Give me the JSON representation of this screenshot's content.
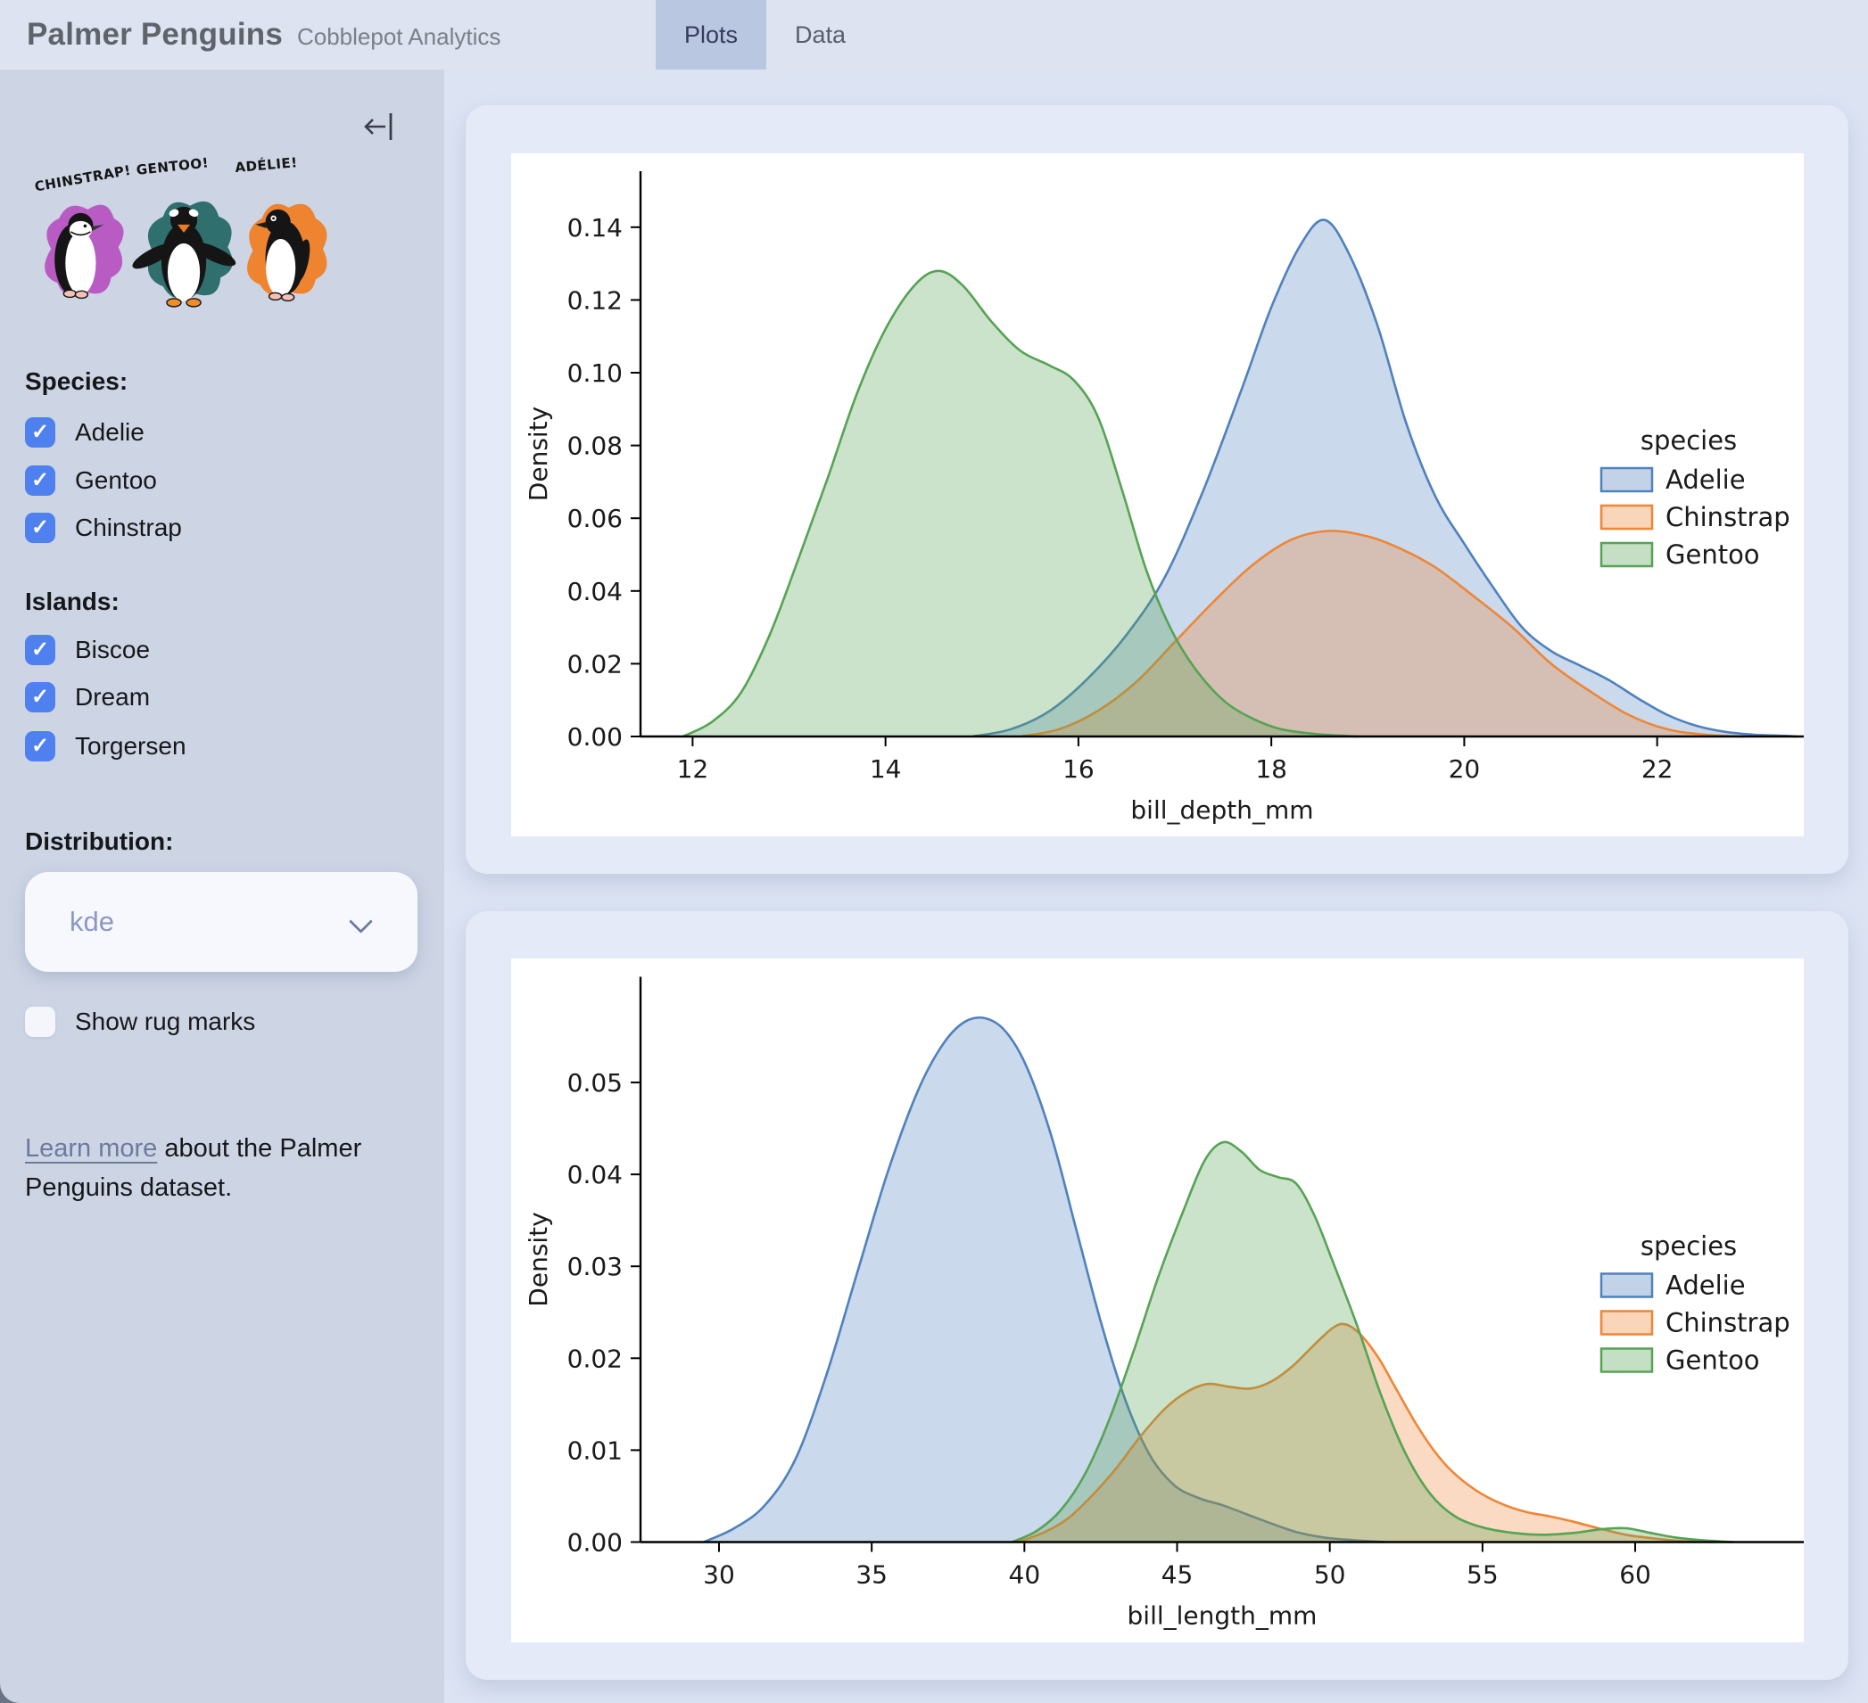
{
  "header": {
    "title": "Palmer Penguins",
    "subtitle": "Cobblepot Analytics",
    "tabs": [
      {
        "label": "Plots",
        "active": true
      },
      {
        "label": "Data",
        "active": false
      }
    ]
  },
  "sidebar": {
    "artwork": {
      "labels": [
        "CHINSTRAP!",
        "GENTOO!",
        "ADÉLIE!"
      ],
      "splash_colors": [
        "#b85cc4",
        "#2f6f6d",
        "#ee8330"
      ]
    },
    "species": {
      "label": "Species:",
      "options": [
        {
          "label": "Adelie",
          "checked": true
        },
        {
          "label": "Gentoo",
          "checked": true
        },
        {
          "label": "Chinstrap",
          "checked": true
        }
      ]
    },
    "islands": {
      "label": "Islands:",
      "options": [
        {
          "label": "Biscoe",
          "checked": true
        },
        {
          "label": "Dream",
          "checked": true
        },
        {
          "label": "Torgersen",
          "checked": true
        }
      ]
    },
    "distribution": {
      "label": "Distribution:",
      "value": "kde"
    },
    "rug": {
      "label": "Show rug marks",
      "checked": false
    },
    "learn_more": {
      "link_text": "Learn more",
      "rest_text": " about the Palmer Penguins dataset."
    }
  },
  "icons": {
    "check": "✓",
    "collapse": "left-arrow-to-bar"
  },
  "theme": {
    "header_bg": "#dde3f1",
    "active_tab_bg": "#b9c7e1",
    "sidebar_bg": "#cdd5e5",
    "main_bg": "#dce4f4",
    "card_bg": "#e4eaf7",
    "checkbox_blue": "#4e80f0",
    "link_color": "#6d7a9e",
    "adelie_color": "#4f81bc",
    "chinstrap_color": "#ee8636",
    "gentoo_color": "#56a354"
  },
  "chart_data": [
    {
      "type": "area",
      "kind": "kde",
      "title": "",
      "xlabel": "bill_depth_mm",
      "ylabel": "Density",
      "xlim": [
        11.46,
        23.52
      ],
      "ylim": [
        0,
        0.1554
      ],
      "grid": false,
      "xticks": [
        {
          "v": 12,
          "label": "12"
        },
        {
          "v": 14,
          "label": "14"
        },
        {
          "v": 16,
          "label": "16"
        },
        {
          "v": 18,
          "label": "18"
        },
        {
          "v": 20,
          "label": "20"
        },
        {
          "v": 22,
          "label": "22"
        }
      ],
      "yticks": [
        {
          "v": 0,
          "label": "0.00"
        },
        {
          "v": 0.02,
          "label": "0.02"
        },
        {
          "v": 0.04,
          "label": "0.04"
        },
        {
          "v": 0.06,
          "label": "0.06"
        },
        {
          "v": 0.08,
          "label": "0.08"
        },
        {
          "v": 0.1,
          "label": "0.10"
        },
        {
          "v": 0.12,
          "label": "0.12"
        },
        {
          "v": 0.14,
          "label": "0.14"
        }
      ],
      "legend": {
        "title": "species",
        "position": "right-center",
        "entries": [
          "Adelie",
          "Chinstrap",
          "Gentoo"
        ]
      },
      "series": [
        {
          "name": "Adelie",
          "color": "#4f81bc",
          "fill_alpha": 0.3,
          "points": [
            [
              14.9,
              0
            ],
            [
              15.3,
              0.002
            ],
            [
              15.7,
              0.007
            ],
            [
              16.1,
              0.016
            ],
            [
              16.5,
              0.028
            ],
            [
              16.9,
              0.044
            ],
            [
              17.3,
              0.068
            ],
            [
              17.7,
              0.096
            ],
            [
              18.0,
              0.118
            ],
            [
              18.3,
              0.135
            ],
            [
              18.55,
              0.142
            ],
            [
              18.8,
              0.133
            ],
            [
              19.1,
              0.113
            ],
            [
              19.4,
              0.086
            ],
            [
              19.7,
              0.066
            ],
            [
              20.0,
              0.053
            ],
            [
              20.3,
              0.041
            ],
            [
              20.6,
              0.03
            ],
            [
              20.9,
              0.0235
            ],
            [
              21.2,
              0.0195
            ],
            [
              21.5,
              0.0155
            ],
            [
              21.8,
              0.0105
            ],
            [
              22.1,
              0.006
            ],
            [
              22.4,
              0.003
            ],
            [
              22.7,
              0.0013
            ],
            [
              23.0,
              0.0005
            ],
            [
              23.3,
              0.0002
            ],
            [
              23.45,
              0
            ]
          ]
        },
        {
          "name": "Chinstrap",
          "color": "#ee8636",
          "fill_alpha": 0.3,
          "points": [
            [
              15.4,
              0
            ],
            [
              15.8,
              0.002
            ],
            [
              16.2,
              0.007
            ],
            [
              16.6,
              0.015
            ],
            [
              17.0,
              0.026
            ],
            [
              17.4,
              0.037
            ],
            [
              17.8,
              0.047
            ],
            [
              18.2,
              0.054
            ],
            [
              18.6,
              0.0565
            ],
            [
              19.0,
              0.055
            ],
            [
              19.35,
              0.0515
            ],
            [
              19.7,
              0.0465
            ],
            [
              20.1,
              0.0385
            ],
            [
              20.5,
              0.03
            ],
            [
              20.9,
              0.02
            ],
            [
              21.3,
              0.0125
            ],
            [
              21.7,
              0.006
            ],
            [
              22.1,
              0.002
            ],
            [
              22.5,
              0.0005
            ],
            [
              22.9,
              0
            ]
          ]
        },
        {
          "name": "Gentoo",
          "color": "#56a354",
          "fill_alpha": 0.3,
          "points": [
            [
              11.9,
              0
            ],
            [
              12.2,
              0.004
            ],
            [
              12.5,
              0.012
            ],
            [
              12.8,
              0.028
            ],
            [
              13.1,
              0.049
            ],
            [
              13.4,
              0.071
            ],
            [
              13.7,
              0.094
            ],
            [
              14.0,
              0.112
            ],
            [
              14.3,
              0.124
            ],
            [
              14.55,
              0.128
            ],
            [
              14.8,
              0.124
            ],
            [
              15.1,
              0.114
            ],
            [
              15.4,
              0.106
            ],
            [
              15.7,
              0.102
            ],
            [
              15.95,
              0.098
            ],
            [
              16.2,
              0.088
            ],
            [
              16.45,
              0.068
            ],
            [
              16.7,
              0.046
            ],
            [
              16.95,
              0.03
            ],
            [
              17.2,
              0.019
            ],
            [
              17.5,
              0.01
            ],
            [
              17.8,
              0.005
            ],
            [
              18.1,
              0.002
            ],
            [
              18.5,
              0.0006
            ],
            [
              18.9,
              0
            ]
          ]
        }
      ]
    },
    {
      "type": "area",
      "kind": "kde",
      "title": "",
      "xlabel": "bill_length_mm",
      "ylabel": "Density",
      "xlim": [
        27.43,
        65.52
      ],
      "ylim": [
        0,
        0.0615
      ],
      "grid": false,
      "xticks": [
        {
          "v": 30,
          "label": "30"
        },
        {
          "v": 35,
          "label": "35"
        },
        {
          "v": 40,
          "label": "40"
        },
        {
          "v": 45,
          "label": "45"
        },
        {
          "v": 50,
          "label": "50"
        },
        {
          "v": 55,
          "label": "55"
        },
        {
          "v": 60,
          "label": "60"
        }
      ],
      "yticks": [
        {
          "v": 0,
          "label": "0.00"
        },
        {
          "v": 0.01,
          "label": "0.01"
        },
        {
          "v": 0.02,
          "label": "0.02"
        },
        {
          "v": 0.03,
          "label": "0.03"
        },
        {
          "v": 0.04,
          "label": "0.04"
        },
        {
          "v": 0.05,
          "label": "0.05"
        }
      ],
      "legend": {
        "title": "species",
        "position": "right-center",
        "entries": [
          "Adelie",
          "Chinstrap",
          "Gentoo"
        ]
      },
      "series": [
        {
          "name": "Adelie",
          "color": "#4f81bc",
          "fill_alpha": 0.3,
          "points": [
            [
              29.5,
              0
            ],
            [
              30.5,
              0.0015
            ],
            [
              31.5,
              0.004
            ],
            [
              32.5,
              0.009
            ],
            [
              33.5,
              0.018
            ],
            [
              34.5,
              0.029
            ],
            [
              35.5,
              0.04
            ],
            [
              36.5,
              0.049
            ],
            [
              37.3,
              0.054
            ],
            [
              38.0,
              0.0565
            ],
            [
              38.7,
              0.057
            ],
            [
              39.4,
              0.0555
            ],
            [
              40.1,
              0.0515
            ],
            [
              40.9,
              0.044
            ],
            [
              41.7,
              0.034
            ],
            [
              42.5,
              0.024
            ],
            [
              43.3,
              0.0155
            ],
            [
              44.1,
              0.0095
            ],
            [
              44.9,
              0.0062
            ],
            [
              45.7,
              0.0048
            ],
            [
              46.5,
              0.004
            ],
            [
              47.3,
              0.003
            ],
            [
              48.1,
              0.002
            ],
            [
              48.9,
              0.0011
            ],
            [
              49.8,
              0.0005
            ],
            [
              50.8,
              0.0002
            ],
            [
              51.8,
              0
            ]
          ]
        },
        {
          "name": "Chinstrap",
          "color": "#ee8636",
          "fill_alpha": 0.3,
          "points": [
            [
              39.8,
              0
            ],
            [
              40.6,
              0.001
            ],
            [
              41.4,
              0.0025
            ],
            [
              42.2,
              0.005
            ],
            [
              43.0,
              0.008
            ],
            [
              43.8,
              0.0115
            ],
            [
              44.6,
              0.0145
            ],
            [
              45.3,
              0.0163
            ],
            [
              46.0,
              0.0172
            ],
            [
              46.7,
              0.0169
            ],
            [
              47.4,
              0.0167
            ],
            [
              48.1,
              0.0175
            ],
            [
              48.8,
              0.0192
            ],
            [
              49.5,
              0.0215
            ],
            [
              50.1,
              0.0233
            ],
            [
              50.5,
              0.0237
            ],
            [
              51.0,
              0.0226
            ],
            [
              51.6,
              0.02
            ],
            [
              52.2,
              0.0165
            ],
            [
              52.8,
              0.013
            ],
            [
              53.4,
              0.01
            ],
            [
              54.0,
              0.0077
            ],
            [
              54.8,
              0.0056
            ],
            [
              55.6,
              0.0042
            ],
            [
              56.4,
              0.0033
            ],
            [
              57.2,
              0.0028
            ],
            [
              58.0,
              0.0022
            ],
            [
              58.8,
              0.0015
            ],
            [
              59.7,
              0.0008
            ],
            [
              60.6,
              0.0004
            ],
            [
              61.6,
              0.0001
            ],
            [
              62.6,
              0
            ]
          ]
        },
        {
          "name": "Gentoo",
          "color": "#56a354",
          "fill_alpha": 0.3,
          "points": [
            [
              39.6,
              0
            ],
            [
              40.4,
              0.0012
            ],
            [
              41.2,
              0.0035
            ],
            [
              42.0,
              0.0075
            ],
            [
              42.8,
              0.0135
            ],
            [
              43.6,
              0.021
            ],
            [
              44.4,
              0.029
            ],
            [
              45.2,
              0.036
            ],
            [
              45.9,
              0.0415
            ],
            [
              46.5,
              0.0435
            ],
            [
              47.1,
              0.0425
            ],
            [
              47.7,
              0.0405
            ],
            [
              48.3,
              0.0397
            ],
            [
              48.9,
              0.039
            ],
            [
              49.5,
              0.0355
            ],
            [
              50.1,
              0.0305
            ],
            [
              50.9,
              0.0235
            ],
            [
              51.7,
              0.0158
            ],
            [
              52.5,
              0.0095
            ],
            [
              53.3,
              0.0052
            ],
            [
              54.1,
              0.0028
            ],
            [
              55.0,
              0.0016
            ],
            [
              56.0,
              0.001
            ],
            [
              57.0,
              0.0008
            ],
            [
              58.0,
              0.001
            ],
            [
              58.9,
              0.0014
            ],
            [
              59.7,
              0.0015
            ],
            [
              60.5,
              0.001
            ],
            [
              61.3,
              0.0005
            ],
            [
              62.2,
              0.0002
            ],
            [
              63.2,
              0
            ]
          ]
        }
      ]
    }
  ]
}
